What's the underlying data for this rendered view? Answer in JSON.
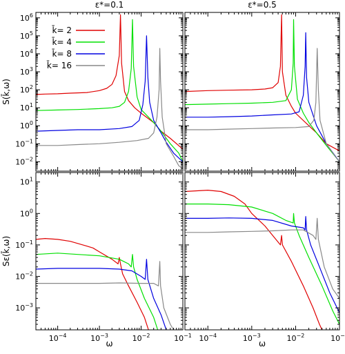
{
  "chart_data": [
    {
      "panel": "top-left",
      "type": "line",
      "title": "ε*=0.1",
      "ylabel": "S(k̄,ω)",
      "xlabel": "",
      "xscale": "log",
      "yscale": "log",
      "xlim": [
        3e-05,
        0.1
      ],
      "ylim": [
        0.003,
        2000000
      ],
      "legend": "top-left",
      "series": [
        {
          "name": "k̄= 2",
          "color": "#e00000",
          "points": [
            [
              3e-05,
              55
            ],
            [
              5e-05,
              58
            ],
            [
              0.0001,
              60
            ],
            [
              0.0002,
              65
            ],
            [
              0.0005,
              70
            ],
            [
              0.001,
              90
            ],
            [
              0.0015,
              120
            ],
            [
              0.002,
              200
            ],
            [
              0.0025,
              600
            ],
            [
              0.003,
              8000
            ],
            [
              0.0032,
              1500000
            ],
            [
              0.0034,
              3000
            ],
            [
              0.004,
              80
            ],
            [
              0.005,
              25
            ],
            [
              0.007,
              10
            ],
            [
              0.01,
              5
            ],
            [
              0.02,
              1.5
            ],
            [
              0.03,
              0.5
            ],
            [
              0.05,
              0.2
            ],
            [
              0.1,
              0.05
            ]
          ]
        },
        {
          "name": "k̄= 4",
          "color": "#00e000",
          "points": [
            [
              3e-05,
              7
            ],
            [
              0.0001,
              7.5
            ],
            [
              0.0003,
              8
            ],
            [
              0.001,
              9
            ],
            [
              0.002,
              10
            ],
            [
              0.003,
              12
            ],
            [
              0.004,
              20
            ],
            [
              0.005,
              80
            ],
            [
              0.0058,
              1500
            ],
            [
              0.0062,
              800000
            ],
            [
              0.0066,
              2000
            ],
            [
              0.008,
              40
            ],
            [
              0.01,
              8
            ],
            [
              0.02,
              1.5
            ],
            [
              0.03,
              0.5
            ],
            [
              0.05,
              0.1
            ],
            [
              0.08,
              0.03
            ],
            [
              0.1,
              0.01
            ]
          ]
        },
        {
          "name": "k̄= 8",
          "color": "#0000e0",
          "points": [
            [
              3e-05,
              0.5
            ],
            [
              0.0001,
              0.55
            ],
            [
              0.0003,
              0.6
            ],
            [
              0.001,
              0.6
            ],
            [
              0.003,
              0.7
            ],
            [
              0.006,
              0.9
            ],
            [
              0.009,
              2
            ],
            [
              0.011,
              15
            ],
            [
              0.0125,
              300
            ],
            [
              0.0135,
              100000
            ],
            [
              0.0145,
              500
            ],
            [
              0.016,
              20
            ],
            [
              0.02,
              2
            ],
            [
              0.03,
              0.4
            ],
            [
              0.04,
              0.12
            ],
            [
              0.06,
              0.03
            ],
            [
              0.1,
              0.01
            ]
          ]
        },
        {
          "name": "k̄= 16",
          "color": "#888888",
          "points": [
            [
              3e-05,
              0.08
            ],
            [
              0.0001,
              0.08
            ],
            [
              0.0003,
              0.09
            ],
            [
              0.001,
              0.1
            ],
            [
              0.003,
              0.12
            ],
            [
              0.008,
              0.15
            ],
            [
              0.015,
              0.2
            ],
            [
              0.02,
              0.4
            ],
            [
              0.024,
              3
            ],
            [
              0.027,
              100
            ],
            [
              0.028,
              20000
            ],
            [
              0.0292,
              300
            ],
            [
              0.032,
              3
            ],
            [
              0.04,
              0.1
            ],
            [
              0.06,
              0.02
            ],
            [
              0.08,
              0.006
            ],
            [
              0.1,
              0.004
            ]
          ]
        }
      ]
    },
    {
      "panel": "top-right",
      "type": "line",
      "title": "ε*=0.5",
      "xscale": "log",
      "yscale": "log",
      "xlim": [
        3e-05,
        0.1
      ],
      "ylim": [
        0.003,
        2000000
      ],
      "series": [
        {
          "color": "#e00000",
          "points": [
            [
              3e-05,
              80
            ],
            [
              0.0001,
              90
            ],
            [
              0.0003,
              95
            ],
            [
              0.001,
              100
            ],
            [
              0.002,
              110
            ],
            [
              0.003,
              130
            ],
            [
              0.004,
              250
            ],
            [
              0.0045,
              2000
            ],
            [
              0.0048,
              1500000
            ],
            [
              0.005,
              1000
            ],
            [
              0.006,
              50
            ],
            [
              0.008,
              12
            ],
            [
              0.01,
              5
            ],
            [
              0.02,
              1
            ],
            [
              0.03,
              0.4
            ],
            [
              0.05,
              0.1
            ],
            [
              0.1,
              0.04
            ]
          ]
        },
        {
          "color": "#00e000",
          "points": [
            [
              3e-05,
              15
            ],
            [
              0.0001,
              16
            ],
            [
              0.0003,
              17
            ],
            [
              0.001,
              18
            ],
            [
              0.003,
              20
            ],
            [
              0.006,
              25
            ],
            [
              0.008,
              100
            ],
            [
              0.0088,
              3000
            ],
            [
              0.009,
              800000
            ],
            [
              0.0094,
              2000
            ],
            [
              0.011,
              30
            ],
            [
              0.015,
              5
            ],
            [
              0.02,
              1.5
            ],
            [
              0.03,
              0.4
            ],
            [
              0.05,
              0.08
            ],
            [
              0.1,
              0.01
            ]
          ]
        },
        {
          "color": "#0000e0",
          "points": [
            [
              3e-05,
              3
            ],
            [
              0.0001,
              3
            ],
            [
              0.0003,
              3.2
            ],
            [
              0.001,
              3.5
            ],
            [
              0.003,
              4
            ],
            [
              0.008,
              4.5
            ],
            [
              0.012,
              6
            ],
            [
              0.015,
              50
            ],
            [
              0.0165,
              2000
            ],
            [
              0.017,
              150000
            ],
            [
              0.0178,
              500
            ],
            [
              0.02,
              20
            ],
            [
              0.03,
              1
            ],
            [
              0.05,
              0.1
            ],
            [
              0.1,
              0.01
            ]
          ]
        },
        {
          "color": "#888888",
          "points": [
            [
              3e-05,
              0.6
            ],
            [
              0.0001,
              0.6
            ],
            [
              0.0003,
              0.65
            ],
            [
              0.001,
              0.7
            ],
            [
              0.003,
              0.75
            ],
            [
              0.01,
              0.8
            ],
            [
              0.02,
              0.9
            ],
            [
              0.026,
              2
            ],
            [
              0.029,
              20
            ],
            [
              0.031,
              20000
            ],
            [
              0.033,
              100
            ],
            [
              0.036,
              2
            ],
            [
              0.05,
              0.1
            ],
            [
              0.08,
              0.02
            ],
            [
              0.1,
              0.01
            ]
          ]
        }
      ]
    },
    {
      "panel": "bottom-left",
      "type": "line",
      "ylabel": "Sε(k̄,ω)",
      "xlabel": "ω",
      "xscale": "log",
      "yscale": "log",
      "xlim": [
        3e-05,
        0.1
      ],
      "ylim": [
        0.0002,
        20
      ],
      "series": [
        {
          "color": "#e00000",
          "points": [
            [
              3e-05,
              0.15
            ],
            [
              5e-05,
              0.16
            ],
            [
              0.0001,
              0.15
            ],
            [
              0.0002,
              0.13
            ],
            [
              0.0004,
              0.1
            ],
            [
              0.0007,
              0.08
            ],
            [
              0.001,
              0.06
            ],
            [
              0.002,
              0.035
            ],
            [
              0.0028,
              0.025
            ],
            [
              0.003,
              0.04
            ],
            [
              0.0032,
              0.025
            ],
            [
              0.0036,
              0.012
            ],
            [
              0.005,
              0.005
            ],
            [
              0.008,
              0.0015
            ],
            [
              0.012,
              0.0005
            ],
            [
              0.015,
              0.0002
            ]
          ]
        },
        {
          "color": "#00e000",
          "points": [
            [
              3e-05,
              0.05
            ],
            [
              0.0001,
              0.055
            ],
            [
              0.0003,
              0.05
            ],
            [
              0.001,
              0.045
            ],
            [
              0.003,
              0.035
            ],
            [
              0.005,
              0.025
            ],
            [
              0.0058,
              0.02
            ],
            [
              0.0062,
              0.05
            ],
            [
              0.0066,
              0.02
            ],
            [
              0.008,
              0.008
            ],
            [
              0.012,
              0.002
            ],
            [
              0.02,
              0.0005
            ],
            [
              0.025,
              0.0002
            ]
          ]
        },
        {
          "color": "#0000e0",
          "points": [
            [
              3e-05,
              0.017
            ],
            [
              0.0001,
              0.018
            ],
            [
              0.0003,
              0.018
            ],
            [
              0.001,
              0.018
            ],
            [
              0.003,
              0.017
            ],
            [
              0.006,
              0.015
            ],
            [
              0.01,
              0.01
            ],
            [
              0.0125,
              0.008
            ],
            [
              0.0135,
              0.035
            ],
            [
              0.0145,
              0.008
            ],
            [
              0.02,
              0.002
            ],
            [
              0.03,
              0.0006
            ],
            [
              0.04,
              0.0002
            ]
          ]
        },
        {
          "color": "#888888",
          "points": [
            [
              3e-05,
              0.006
            ],
            [
              0.0001,
              0.006
            ],
            [
              0.0003,
              0.006
            ],
            [
              0.001,
              0.006
            ],
            [
              0.003,
              0.0062
            ],
            [
              0.01,
              0.006
            ],
            [
              0.02,
              0.006
            ],
            [
              0.026,
              0.005
            ],
            [
              0.028,
              0.03
            ],
            [
              0.0292,
              0.005
            ],
            [
              0.035,
              0.001
            ],
            [
              0.05,
              0.0003
            ],
            [
              0.06,
              0.0002
            ]
          ]
        }
      ]
    },
    {
      "panel": "bottom-right",
      "type": "line",
      "xlabel": "ω",
      "xscale": "log",
      "yscale": "log",
      "xlim": [
        3e-05,
        0.1
      ],
      "ylim": [
        0.0002,
        20
      ],
      "series": [
        {
          "color": "#e00000",
          "points": [
            [
              3e-05,
              5
            ],
            [
              0.0001,
              5.5
            ],
            [
              0.0002,
              5
            ],
            [
              0.0004,
              3.5
            ],
            [
              0.0007,
              2
            ],
            [
              0.001,
              1
            ],
            [
              0.002,
              0.4
            ],
            [
              0.003,
              0.2
            ],
            [
              0.0045,
              0.1
            ],
            [
              0.0048,
              0.2
            ],
            [
              0.005,
              0.1
            ],
            [
              0.008,
              0.03
            ],
            [
              0.015,
              0.005
            ],
            [
              0.025,
              0.001
            ],
            [
              0.035,
              0.0003
            ],
            [
              0.04,
              0.0002
            ]
          ]
        },
        {
          "color": "#00e000",
          "points": [
            [
              3e-05,
              2
            ],
            [
              0.0001,
              2
            ],
            [
              0.0003,
              1.9
            ],
            [
              0.001,
              1.6
            ],
            [
              0.003,
              1
            ],
            [
              0.006,
              0.6
            ],
            [
              0.0088,
              0.5
            ],
            [
              0.009,
              1
            ],
            [
              0.0094,
              0.5
            ],
            [
              0.012,
              0.2
            ],
            [
              0.02,
              0.04
            ],
            [
              0.04,
              0.005
            ],
            [
              0.07,
              0.0008
            ],
            [
              0.1,
              0.0003
            ]
          ]
        },
        {
          "color": "#0000e0",
          "points": [
            [
              3e-05,
              0.7
            ],
            [
              0.0001,
              0.7
            ],
            [
              0.0003,
              0.72
            ],
            [
              0.001,
              0.7
            ],
            [
              0.003,
              0.6
            ],
            [
              0.008,
              0.4
            ],
            [
              0.015,
              0.35
            ],
            [
              0.0165,
              0.3
            ],
            [
              0.017,
              0.8
            ],
            [
              0.0178,
              0.3
            ],
            [
              0.022,
              0.1
            ],
            [
              0.035,
              0.02
            ],
            [
              0.06,
              0.003
            ],
            [
              0.1,
              0.0007
            ]
          ]
        },
        {
          "color": "#888888",
          "points": [
            [
              3e-05,
              0.25
            ],
            [
              0.0001,
              0.25
            ],
            [
              0.0003,
              0.26
            ],
            [
              0.001,
              0.27
            ],
            [
              0.003,
              0.28
            ],
            [
              0.008,
              0.3
            ],
            [
              0.015,
              0.3
            ],
            [
              0.025,
              0.2
            ],
            [
              0.029,
              0.15
            ],
            [
              0.031,
              0.7
            ],
            [
              0.033,
              0.15
            ],
            [
              0.045,
              0.02
            ],
            [
              0.07,
              0.004
            ],
            [
              0.1,
              0.002
            ]
          ]
        }
      ]
    }
  ]
}
